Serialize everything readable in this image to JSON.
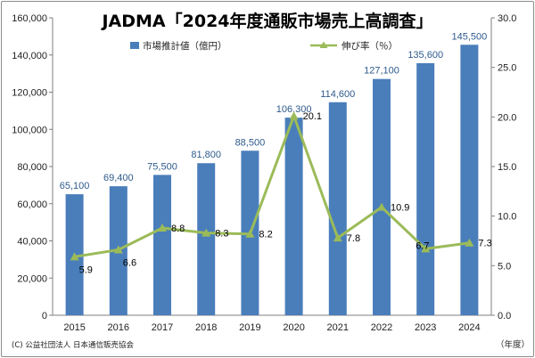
{
  "chart_data": {
    "type": "bar+line",
    "title": "JADMA「2024年度通販市場売上高調査」",
    "categories": [
      "2015",
      "2016",
      "2017",
      "2018",
      "2019",
      "2020",
      "2021",
      "2022",
      "2023",
      "2024"
    ],
    "series": [
      {
        "name": "市場推計値（億円）",
        "type": "bar",
        "axis": "left",
        "color": "#4a7ebb",
        "values": [
          65100,
          69400,
          75500,
          81800,
          88500,
          106300,
          114600,
          127100,
          135600,
          145500
        ],
        "labels": [
          "65,100",
          "69,400",
          "75,500",
          "81,800",
          "88,500",
          "106,300",
          "114,600",
          "127,100",
          "135,600",
          "145,500"
        ]
      },
      {
        "name": "伸び率（％）",
        "type": "line",
        "axis": "right",
        "color": "#9bbb59",
        "values": [
          5.9,
          6.6,
          8.8,
          8.3,
          8.2,
          20.1,
          7.8,
          10.9,
          6.7,
          7.3
        ],
        "labels": [
          "5.9",
          "6.6",
          "8.8",
          "8.3",
          "8.2",
          "20.1",
          "7.8",
          "10.9",
          "6.7",
          "7.3"
        ]
      }
    ],
    "y_left": {
      "range": [
        0,
        160000
      ],
      "ticks": [
        0,
        20000,
        40000,
        60000,
        80000,
        100000,
        120000,
        140000,
        160000
      ],
      "tick_labels": [
        "0",
        "20,000",
        "40,000",
        "60,000",
        "80,000",
        "100,000",
        "120,000",
        "140,000",
        "160,000"
      ]
    },
    "y_right": {
      "range": [
        0,
        30
      ],
      "ticks": [
        0,
        5,
        10,
        15,
        20,
        25,
        30
      ],
      "tick_labels": [
        "0.0",
        "5.0",
        "10.0",
        "15.0",
        "20.0",
        "25.0",
        "30.0"
      ]
    },
    "xlabel": "（年度）",
    "grid": false,
    "legend_position": "top-center"
  },
  "credit": "(C) 公益社団法人 日本通信販売協会"
}
